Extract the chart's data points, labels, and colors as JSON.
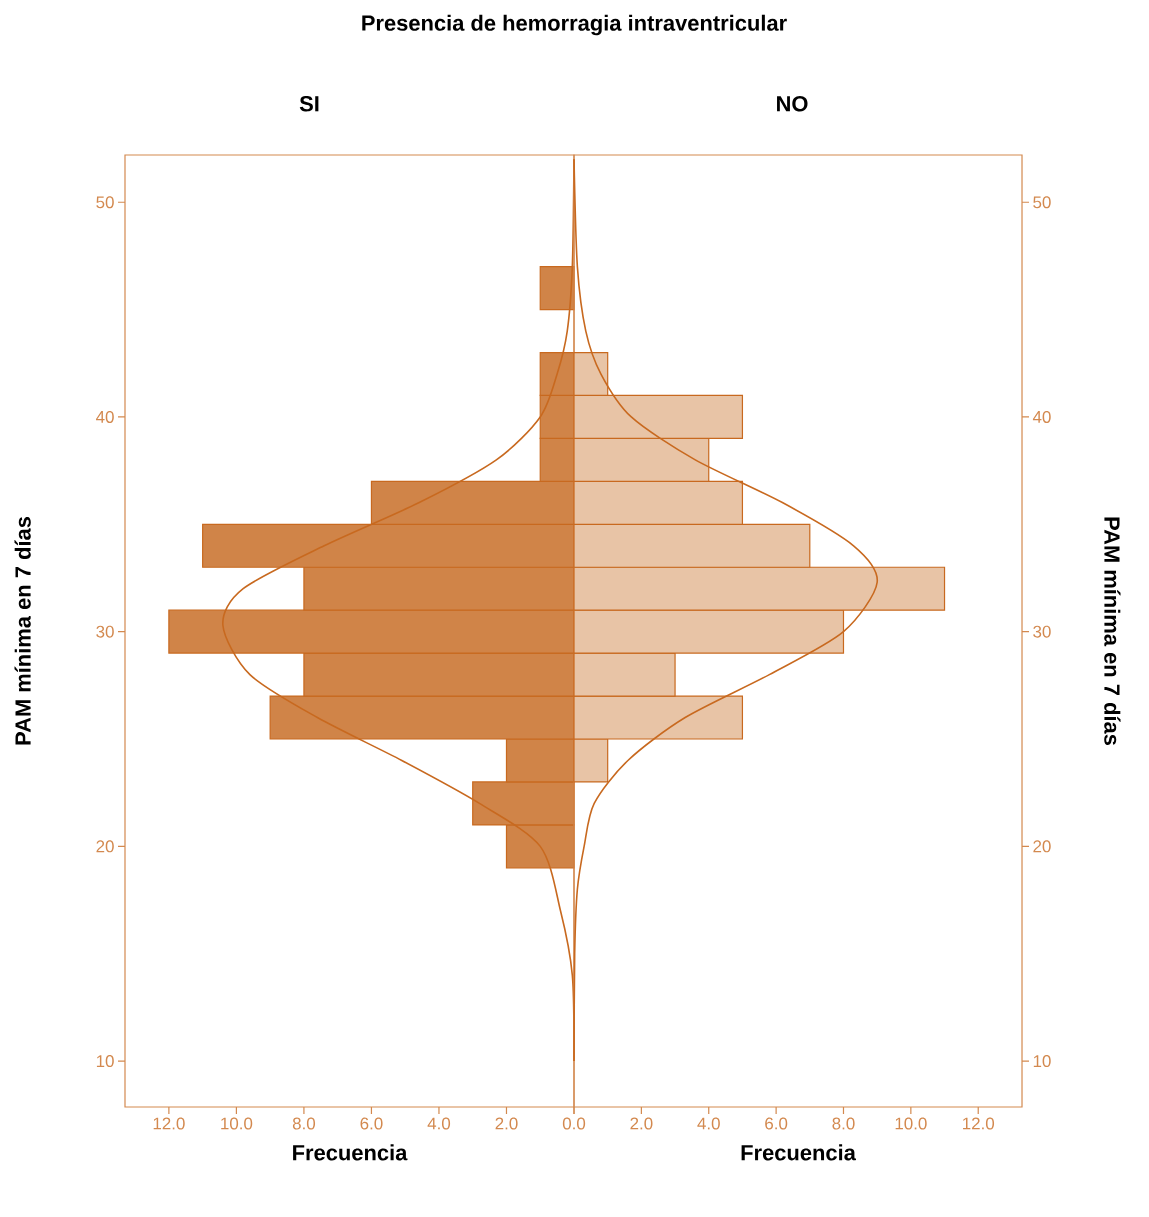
{
  "chart_data": [
    {
      "type": "histogram",
      "orientation": "horizontal",
      "title": "Presencia de hemorragia intraventricular",
      "subtitle": "SI",
      "xlabel": "Frecuencia",
      "ylabel": "PAM mínima en 7 días",
      "bins": [
        19,
        21,
        23,
        25,
        27,
        29,
        31,
        33,
        35,
        37,
        39,
        41,
        43,
        45,
        47
      ],
      "series": [
        {
          "color": "#d08448",
          "values": [
            2,
            3,
            2,
            9,
            8,
            12,
            8,
            11,
            6,
            1,
            1,
            1,
            0,
            1
          ]
        },
        {
          "type": "line",
          "color": "#c8691f",
          "x": [
            10,
            14,
            17,
            20,
            22,
            24,
            26,
            28,
            30.3,
            32,
            34,
            36,
            38,
            40,
            42,
            44,
            47,
            52
          ],
          "values": [
            0,
            0.05,
            0.4,
            1.0,
            2.8,
            5.1,
            7.6,
            9.6,
            10.4,
            9.8,
            7.4,
            4.6,
            2.3,
            1.0,
            0.5,
            0.2,
            0.05,
            0
          ]
        }
      ],
      "xlim": [
        13.3,
        0
      ],
      "xticks": [
        {
          "value": 0,
          "label": "0.0"
        },
        {
          "value": 2,
          "label": "2.0"
        },
        {
          "value": 4,
          "label": "4.0"
        },
        {
          "value": 6,
          "label": "6.0"
        },
        {
          "value": 8,
          "label": "8.0"
        },
        {
          "value": 10,
          "label": "10.0"
        },
        {
          "value": 12,
          "label": "12.0"
        }
      ],
      "ylim": [
        7.86,
        52.2
      ],
      "yticks": [
        10,
        20,
        30,
        40,
        50
      ]
    },
    {
      "type": "histogram",
      "orientation": "horizontal",
      "subtitle": "NO",
      "xlabel": "Frecuencia",
      "ylabel": "PAM mínima en 7 días",
      "bins": [
        19,
        21,
        23,
        25,
        27,
        29,
        31,
        33,
        35,
        37,
        39,
        41,
        43,
        45,
        47
      ],
      "series": [
        {
          "color": "#e8c4a6",
          "values": [
            0,
            0,
            1,
            5,
            3,
            8,
            11,
            7,
            5,
            4,
            5,
            1,
            0,
            0
          ]
        },
        {
          "type": "line",
          "color": "#c8691f",
          "x": [
            10,
            15,
            18,
            20,
            22,
            24,
            26,
            28,
            30,
            32.3,
            34,
            36,
            38,
            40,
            42,
            44,
            47,
            52
          ],
          "values": [
            0,
            0.02,
            0.1,
            0.3,
            0.6,
            1.6,
            3.3,
            5.8,
            8.0,
            9.0,
            8.3,
            6.2,
            3.6,
            1.7,
            0.8,
            0.35,
            0.1,
            0
          ]
        }
      ],
      "xlim": [
        0,
        13.3
      ],
      "xticks": [
        {
          "value": 0,
          "label": null
        },
        {
          "value": 2,
          "label": "2.0"
        },
        {
          "value": 4,
          "label": "4.0"
        },
        {
          "value": 6,
          "label": "6.0"
        },
        {
          "value": 8,
          "label": "8.0"
        },
        {
          "value": 10,
          "label": "10.0"
        },
        {
          "value": 12,
          "label": "12.0"
        }
      ],
      "ylim": [
        7.86,
        52.2
      ],
      "yticks": [
        10,
        20,
        30,
        40,
        50
      ]
    }
  ]
}
